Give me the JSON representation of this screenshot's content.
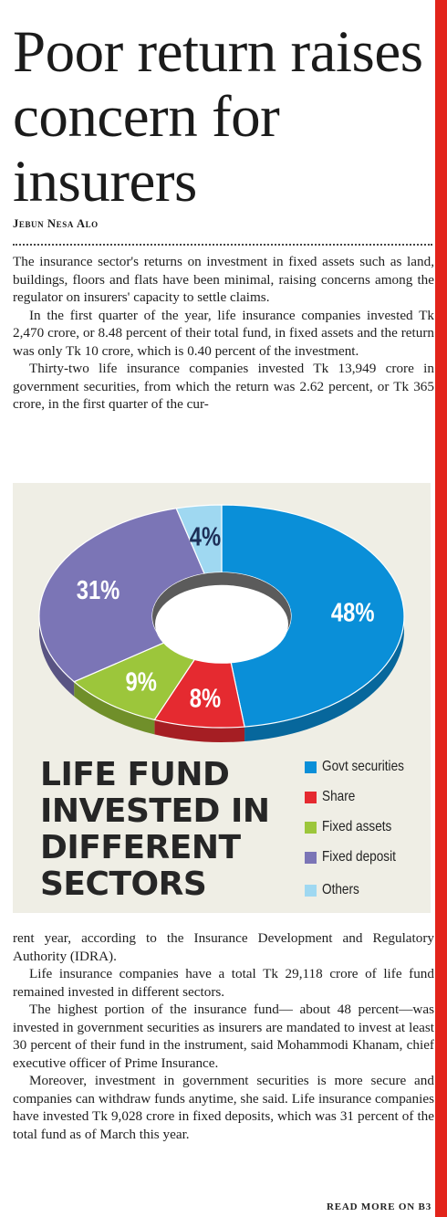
{
  "article": {
    "headline": "Poor return raises concern for insurers",
    "byline": "Jebun Nesa Alo",
    "paragraphs_before": [
      "The insurance sector's returns on investment in fixed assets such as land, buildings, floors and flats have been minimal, raising concerns among the regulator on insurers' capacity to settle claims.",
      "In the first quarter of the year, life insurance companies invested Tk 2,470 crore, or 8.48 percent of their total fund, in fixed assets and the return was only Tk 10 crore, which is 0.40 percent of the investment.",
      "Thirty-two life insurance companies invested Tk 13,949 crore in government securities, from which the return was 2.62 percent, or Tk 365 crore, in the first quarter of the cur-"
    ],
    "paragraphs_after": [
      "rent year, according to the Insurance Development and Regulatory Authority (IDRA).",
      "Life insurance companies have a total Tk 29,118 crore of life fund remained invested in different sectors.",
      "The highest portion of the insurance fund— about 48 percent—was invested in government securities as insurers are mandated to invest at least 30 percent of their fund in the instrument, said Mohammodi Khanam, chief executive officer of Prime Insurance.",
      "Moreover, investment in government securities is more secure and companies can withdraw funds anytime, she said. Life insurance companies have invested Tk 9,028 crore in fixed deposits, which was 31 percent of the total fund as of March this year."
    ],
    "read_more": "READ MORE ON B3"
  },
  "chart_data": {
    "type": "pie",
    "title": "LIFE FUND INVESTED IN DIFFERENT SECTORS",
    "title_lines": [
      "LIFE FUND",
      "INVESTED IN",
      "DIFFERENT",
      "SECTORS"
    ],
    "slices": [
      {
        "name": "Govt securities",
        "value": 48,
        "label": "48%",
        "color": "#0a8fd8"
      },
      {
        "name": "Share",
        "value": 8,
        "label": "8%",
        "color": "#e52a30"
      },
      {
        "name": "Fixed assets",
        "value": 9,
        "label": "9%",
        "color": "#9cc63b"
      },
      {
        "name": "Fixed deposit",
        "value": 31,
        "label": "31%",
        "color": "#7b75b6"
      },
      {
        "name": "Others",
        "value": 4,
        "label": "4%",
        "color": "#9fd8f1"
      }
    ],
    "style": "3d donut",
    "legend_position": "bottom-right"
  },
  "colors": {
    "accent_bar": "#e2241b",
    "graphic_background": "#efeee5"
  }
}
